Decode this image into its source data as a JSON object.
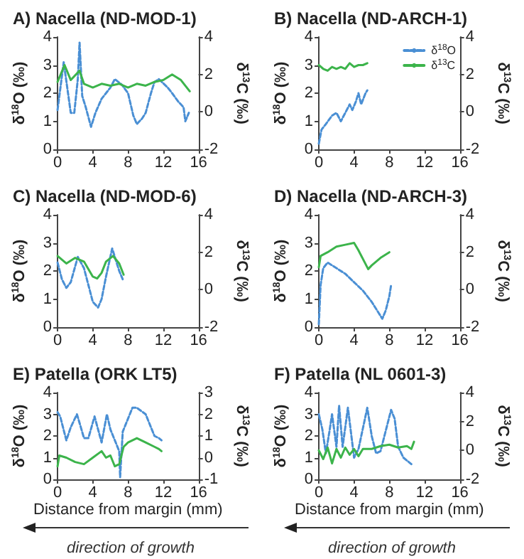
{
  "chart_data": [
    {
      "type": "line",
      "title": "A) Nacella (ND-MOD-1)",
      "ylabel": "δ$^{18}$O (‰)",
      "y2label": "δ$^{13}$C (‰)",
      "xlim": [
        0,
        16
      ],
      "xticks": [
        0,
        4,
        8,
        12,
        16
      ],
      "ylim": [
        0,
        4
      ],
      "yticks": [
        0,
        1,
        2,
        3,
        4
      ],
      "y2lim": [
        -2,
        4
      ],
      "y2ticks": [
        -2,
        0,
        2,
        4
      ],
      "series": [
        {
          "color": "#4a8fd4",
          "line_style": "dashed",
          "x": [
            0,
            0.7,
            1.5,
            1.9,
            2.3,
            2.5,
            2.8,
            3.2,
            3.8,
            4.3,
            5,
            6,
            6.5,
            7.3,
            8,
            8.6,
            9,
            9.6,
            10,
            10.6,
            11,
            11.5,
            12.5,
            13,
            13.7,
            14.3,
            14.5,
            14.9
          ],
          "values": [
            1.4,
            3.1,
            1.3,
            1.3,
            2.5,
            3.8,
            1.9,
            1.5,
            0.8,
            1.3,
            1.8,
            2.2,
            2.5,
            2.3,
            2.0,
            1.2,
            0.9,
            1.1,
            1.3,
            2.0,
            2.4,
            2.5,
            2.2,
            2.0,
            1.7,
            1.5,
            1.0,
            1.3
          ]
        },
        {
          "color": "#3cb44b",
          "line_style": "solid",
          "axis": "y2",
          "x": [
            0,
            0.8,
            1.5,
            2.5,
            3,
            4,
            5,
            6,
            7,
            8,
            9,
            10,
            11,
            12,
            13,
            14,
            15
          ],
          "values": [
            1.6,
            2.5,
            1.7,
            2.2,
            1.5,
            1.3,
            1.5,
            1.4,
            1.5,
            1.3,
            1.5,
            1.4,
            1.6,
            1.7,
            2.0,
            1.7,
            1.1
          ]
        }
      ]
    },
    {
      "type": "line",
      "title": "B) Nacella (ND-ARCH-1)",
      "ylabel": "δ$^{18}$O (‰)",
      "y2label": "δ$^{13}$C (‰)",
      "xlim": [
        0,
        16
      ],
      "xticks": [
        0,
        4,
        8,
        12,
        16
      ],
      "ylim": [
        0,
        4
      ],
      "yticks": [
        0,
        1,
        2,
        3,
        4
      ],
      "y2lim": [
        -2,
        4
      ],
      "y2ticks": [
        -2,
        0,
        2,
        4
      ],
      "legend": "top right",
      "series": [
        {
          "name": "δ$^{18}$O",
          "color": "#4a8fd4",
          "line_style": "dashed",
          "x": [
            0,
            0.3,
            0.8,
            1.5,
            2,
            2.5,
            3,
            3.5,
            3.8,
            4.2,
            4.5,
            4.8,
            5.3,
            5.5
          ],
          "values": [
            0.2,
            0.7,
            0.9,
            1.2,
            1.3,
            1.0,
            1.3,
            1.6,
            1.4,
            1.7,
            2.0,
            1.6,
            2.0,
            2.1
          ]
        },
        {
          "name": "δ$^{13}$C",
          "color": "#3cb44b",
          "line_style": "solid",
          "axis": "y2",
          "x": [
            0,
            0.5,
            1,
            1.5,
            2,
            2.5,
            3,
            3.5,
            4,
            4.5,
            5,
            5.5
          ],
          "values": [
            2.5,
            2.3,
            2.2,
            2.4,
            2.3,
            2.4,
            2.3,
            2.6,
            2.4,
            2.5,
            2.5,
            2.6
          ]
        }
      ]
    },
    {
      "type": "line",
      "title": "C) Nacella (ND-MOD-6)",
      "ylabel": "δ$^{18}$O (‰)",
      "y2label": "δ$^{13}$C (‰)",
      "xlim": [
        0,
        16
      ],
      "xticks": [
        0,
        4,
        8,
        12,
        16
      ],
      "ylim": [
        0,
        4
      ],
      "yticks": [
        0,
        1,
        2,
        3,
        4
      ],
      "y2lim": [
        -2,
        4
      ],
      "y2ticks": [
        -2,
        0,
        2,
        4
      ],
      "series": [
        {
          "color": "#4a8fd4",
          "line_style": "dashed",
          "x": [
            0,
            0.5,
            1,
            1.5,
            2.3,
            3,
            3.5,
            4,
            4.6,
            5,
            5.5,
            6.2,
            6.6,
            7,
            7.4
          ],
          "values": [
            2.3,
            1.7,
            1.4,
            1.6,
            2.5,
            2.1,
            1.5,
            0.9,
            0.7,
            1.0,
            1.8,
            2.8,
            2.4,
            2.0,
            1.7
          ]
        },
        {
          "color": "#3cb44b",
          "line_style": "solid",
          "axis": "y2",
          "x": [
            0,
            1,
            2,
            3,
            4,
            4.5,
            5,
            5.5,
            6.3,
            7,
            7.5
          ],
          "values": [
            1.8,
            1.4,
            1.7,
            1.5,
            0.7,
            0.6,
            0.9,
            1.5,
            1.8,
            1.4,
            0.8
          ]
        }
      ]
    },
    {
      "type": "line",
      "title": "D) Nacella (ND-ARCH-3)",
      "ylabel": "δ$^{18}$O (‰)",
      "y2label": "δ$^{13}$C (‰)",
      "xlim": [
        0,
        16
      ],
      "xticks": [
        0,
        4,
        8,
        12,
        16
      ],
      "ylim": [
        0,
        4
      ],
      "yticks": [
        0,
        1,
        2,
        3,
        4
      ],
      "y2lim": [
        -2,
        4
      ],
      "y2ticks": [
        -2,
        0,
        2,
        4
      ],
      "series": [
        {
          "color": "#4a8fd4",
          "line_style": "dashed",
          "x": [
            0,
            0.2,
            0.5,
            1,
            1.5,
            2,
            3,
            4,
            5,
            6,
            6.8,
            7.2,
            7.6,
            8,
            8.2
          ],
          "values": [
            0.1,
            1.5,
            2.1,
            2.3,
            2.2,
            2.1,
            1.9,
            1.6,
            1.3,
            0.9,
            0.5,
            0.3,
            0.6,
            1.1,
            1.5
          ]
        },
        {
          "color": "#3cb44b",
          "line_style": "solid",
          "axis": "y2",
          "x": [
            0,
            0.2,
            1,
            2,
            3,
            4,
            4.5,
            5.6,
            6,
            7,
            8
          ],
          "values": [
            1.2,
            1.8,
            2.0,
            2.3,
            2.4,
            2.5,
            2.1,
            1.1,
            1.3,
            1.7,
            2.0
          ]
        }
      ]
    },
    {
      "type": "line",
      "title": "E) Patella (ORK LT5)",
      "xlabel": "Distance from margin (mm)",
      "ylabel": "δ$^{18}$O (‰)",
      "y2label": "δ$^{13}$C (‰)",
      "xlim": [
        0,
        16
      ],
      "xticks": [
        0,
        4,
        8,
        12,
        16
      ],
      "ylim": [
        0,
        4
      ],
      "yticks": [
        0,
        1,
        2,
        3,
        4
      ],
      "y2lim": [
        -1,
        3
      ],
      "y2ticks": [
        -1,
        0,
        1,
        2,
        3
      ],
      "annotations": [
        "direction of growth"
      ],
      "series": [
        {
          "color": "#4a8fd4",
          "line_style": "dashed",
          "x": [
            0,
            0.3,
            1,
            1.5,
            2.2,
            2.5,
            3,
            3.5,
            4.2,
            5,
            5.6,
            6,
            6.5,
            7,
            7.1,
            7.4,
            8,
            8.5,
            9,
            10,
            11,
            11.5,
            11.8
          ],
          "values": [
            3.1,
            2.9,
            1.8,
            2.4,
            3.0,
            2.6,
            1.9,
            1.9,
            2.9,
            1.7,
            3.0,
            2.3,
            1.8,
            1.3,
            0.1,
            2.2,
            2.8,
            3.3,
            3.3,
            3.0,
            2.0,
            1.9,
            1.8
          ]
        },
        {
          "color": "#3cb44b",
          "line_style": "solid",
          "axis": "y2",
          "x": [
            0,
            0.2,
            1,
            2,
            3,
            4,
            5,
            5.5,
            6,
            6.5,
            7,
            7.5,
            8,
            9,
            10,
            11,
            11.5,
            11.8
          ],
          "values": [
            -0.4,
            0.1,
            0.0,
            -0.2,
            -0.3,
            0.0,
            0.3,
            0.0,
            0.1,
            -0.4,
            -0.3,
            0.5,
            0.7,
            0.9,
            0.7,
            0.5,
            0.4,
            0.3
          ]
        }
      ]
    },
    {
      "type": "line",
      "title": "F) Patella (NL 0601-3)",
      "xlabel": "Distance from margin (mm)",
      "ylabel": "δ$^{18}$O (‰)",
      "y2label": "δ$^{13}$C (‰)",
      "xlim": [
        0,
        16
      ],
      "xticks": [
        0,
        4,
        8,
        12,
        16
      ],
      "ylim": [
        0,
        4
      ],
      "yticks": [
        0,
        1,
        2,
        3,
        4
      ],
      "y2lim": [
        -2,
        4
      ],
      "y2ticks": [
        -2,
        0,
        2,
        4
      ],
      "annotations": [
        "direction of growth"
      ],
      "series": [
        {
          "color": "#4a8fd4",
          "line_style": "dashed",
          "x": [
            0,
            0.4,
            0.8,
            1.2,
            1.5,
            2,
            2.3,
            2.7,
            3.3,
            4,
            4.5,
            5.5,
            6,
            6.5,
            7,
            8.2,
            8.6,
            9,
            9.6,
            10.2,
            10.5
          ],
          "values": [
            3.0,
            2.3,
            1.2,
            2.2,
            3.0,
            1.5,
            3.4,
            1.5,
            3.3,
            1.0,
            1.4,
            3.3,
            2.0,
            1.2,
            1.3,
            3.2,
            2.8,
            1.5,
            1.0,
            0.8,
            0.7
          ]
        },
        {
          "color": "#3cb44b",
          "line_style": "solid",
          "axis": "y2",
          "x": [
            0,
            0.5,
            1,
            1.5,
            2,
            2.5,
            3,
            3.5,
            4,
            4.5,
            5,
            6,
            7,
            8,
            9,
            10,
            10.5,
            10.8
          ],
          "values": [
            0.0,
            -0.6,
            0.2,
            -0.9,
            0.1,
            -0.5,
            0.2,
            -0.3,
            0.1,
            -0.4,
            0.1,
            0.1,
            0.3,
            0.4,
            0.2,
            0.3,
            0.1,
            0.6
          ]
        }
      ]
    }
  ]
}
